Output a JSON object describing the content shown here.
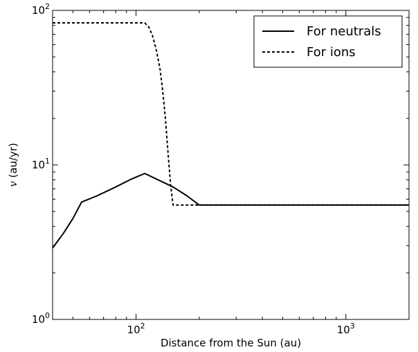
{
  "chart_data": {
    "type": "line",
    "title": "",
    "xlabel": "Distance from the Sun (au)",
    "ylabel_symbol": "v",
    "ylabel_unit": " (au/yr)",
    "xscale": "log",
    "yscale": "log",
    "xlim": [
      40,
      2000
    ],
    "ylim": [
      1,
      100
    ],
    "x_ticks": [
      {
        "value": 100,
        "base": "10",
        "exp": "2"
      },
      {
        "value": 1000,
        "base": "10",
        "exp": "3"
      }
    ],
    "y_ticks": [
      {
        "value": 1,
        "base": "10",
        "exp": "0"
      },
      {
        "value": 10,
        "base": "10",
        "exp": "1"
      },
      {
        "value": 100,
        "base": "10",
        "exp": "2"
      }
    ],
    "grid": false,
    "legend_position": "top-right",
    "series": [
      {
        "name": "For neutrals",
        "style": "solid",
        "color": "#000000",
        "points": [
          [
            40,
            2.9
          ],
          [
            45,
            3.6
          ],
          [
            50,
            4.5
          ],
          [
            55,
            5.75
          ],
          [
            65,
            6.3
          ],
          [
            80,
            7.2
          ],
          [
            95,
            8.1
          ],
          [
            110,
            8.8
          ],
          [
            130,
            7.9
          ],
          [
            150,
            7.2
          ],
          [
            175,
            6.3
          ],
          [
            200,
            5.5
          ],
          [
            2000,
            5.5
          ]
        ]
      },
      {
        "name": "For ions",
        "style": "dashed",
        "color": "#000000",
        "points": [
          [
            40,
            83
          ],
          [
            110,
            83
          ],
          [
            115,
            78
          ],
          [
            120,
            68
          ],
          [
            125,
            55
          ],
          [
            130,
            42
          ],
          [
            134,
            30
          ],
          [
            138,
            20
          ],
          [
            142,
            12
          ],
          [
            146,
            7.5
          ],
          [
            150,
            5.5
          ],
          [
            2000,
            5.5
          ]
        ]
      }
    ]
  }
}
